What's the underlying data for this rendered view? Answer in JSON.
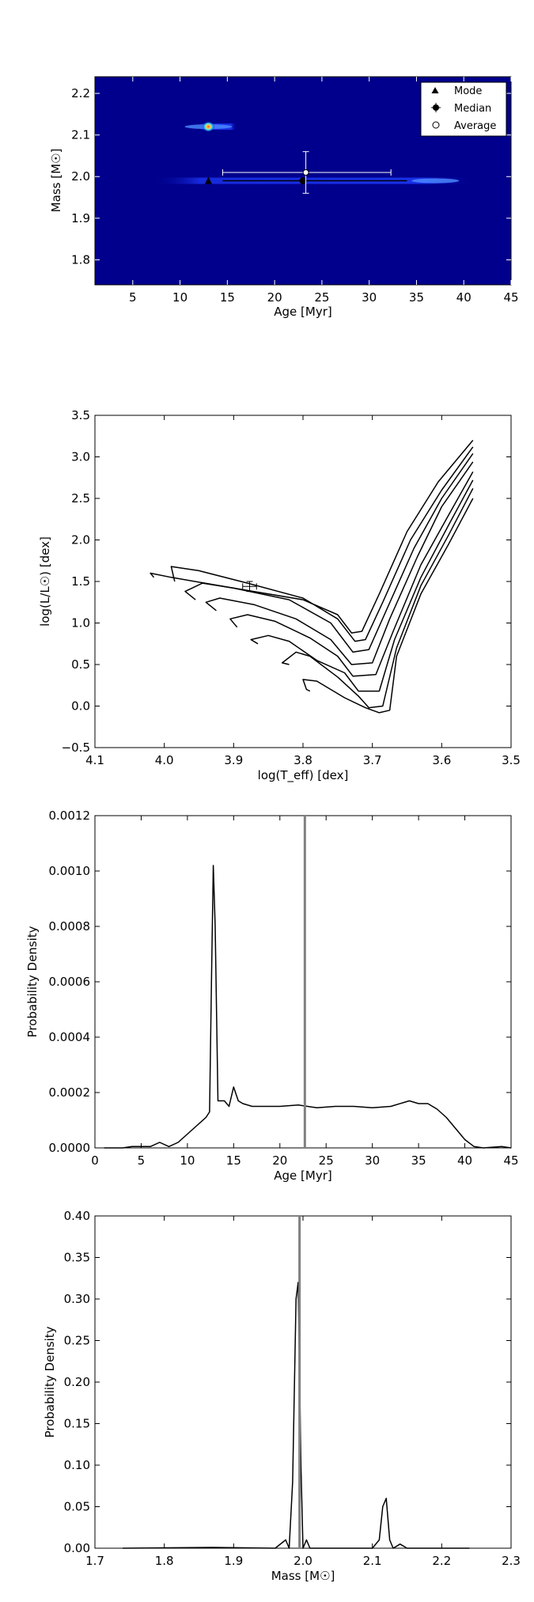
{
  "colors": {
    "heat_background": "#00008c",
    "heat_band": "#1f3cff",
    "heat_core": "#4d8dff",
    "line": "#000000",
    "marker_line": "#808080"
  },
  "chart_data": [
    {
      "type": "heatmap",
      "xlabel": "Age [Myr]",
      "ylabel": "Mass [M☉]",
      "xlim": [
        1,
        45
      ],
      "ylim": [
        1.74,
        2.24
      ],
      "xticks": [
        "5",
        "10",
        "15",
        "20",
        "25",
        "30",
        "35",
        "40",
        "45"
      ],
      "yticks": [
        "1.8",
        "1.9",
        "2.0",
        "2.1",
        "2.2"
      ],
      "legend_position": "top-right",
      "legend": [
        "Mode",
        "Median",
        "Average"
      ],
      "bands": [
        {
          "x_start": 7,
          "x_end": 41,
          "y": 1.99,
          "peak_x": 37
        },
        {
          "x_start": 12,
          "x_end": 16,
          "y": 2.12,
          "peak_x": 13
        }
      ],
      "hotspot": {
        "x": 13,
        "y": 2.12
      },
      "mode": {
        "x": 13,
        "y": 1.99
      },
      "median": {
        "x": 23,
        "y": 1.99,
        "xerr": [
          14.5,
          34
        ],
        "yerr": [
          1.99,
          1.99
        ]
      },
      "average": {
        "x": 23.3,
        "y": 2.01,
        "xerr": [
          14.5,
          32.3
        ],
        "yerr": [
          1.96,
          2.06
        ]
      }
    },
    {
      "type": "line",
      "xlabel": "log(T_eff) [dex]",
      "ylabel": "log(L/L☉) [dex]",
      "xlim": [
        4.1,
        3.5
      ],
      "ylim": [
        -0.5,
        3.5
      ],
      "xticks": [
        "4.1",
        "4.0",
        "3.9",
        "3.8",
        "3.7",
        "3.6",
        "3.5"
      ],
      "yticks": [
        "−0.5",
        "0.0",
        "0.5",
        "1.0",
        "1.5",
        "2.0",
        "2.5",
        "3.0",
        "3.5"
      ],
      "series": [
        {
          "values": [
            [
              4.015,
              1.55
            ],
            [
              4.02,
              1.6
            ],
            [
              3.99,
              1.55
            ],
            [
              3.9,
              1.42
            ],
            [
              3.8,
              1.28
            ],
            [
              3.75,
              1.1
            ],
            [
              3.73,
              0.88
            ],
            [
              3.715,
              0.9
            ],
            [
              3.69,
              1.35
            ],
            [
              3.65,
              2.1
            ],
            [
              3.605,
              2.7
            ],
            [
              3.555,
              3.2
            ]
          ]
        },
        {
          "values": [
            [
              3.985,
              1.5
            ],
            [
              3.99,
              1.68
            ],
            [
              3.95,
              1.63
            ],
            [
              3.88,
              1.48
            ],
            [
              3.8,
              1.3
            ],
            [
              3.75,
              1.05
            ],
            [
              3.725,
              0.78
            ],
            [
              3.71,
              0.8
            ],
            [
              3.685,
              1.25
            ],
            [
              3.645,
              2.0
            ],
            [
              3.6,
              2.6
            ],
            [
              3.555,
              3.12
            ]
          ]
        },
        {
          "values": [
            [
              3.955,
              1.28
            ],
            [
              3.97,
              1.38
            ],
            [
              3.945,
              1.48
            ],
            [
              3.9,
              1.42
            ],
            [
              3.82,
              1.28
            ],
            [
              3.76,
              1.0
            ],
            [
              3.728,
              0.65
            ],
            [
              3.705,
              0.68
            ],
            [
              3.68,
              1.15
            ],
            [
              3.64,
              1.9
            ],
            [
              3.6,
              2.5
            ],
            [
              3.555,
              3.04
            ]
          ]
        },
        {
          "values": [
            [
              3.925,
              1.15
            ],
            [
              3.94,
              1.25
            ],
            [
              3.92,
              1.3
            ],
            [
              3.87,
              1.22
            ],
            [
              3.81,
              1.05
            ],
            [
              3.76,
              0.8
            ],
            [
              3.73,
              0.5
            ],
            [
              3.7,
              0.52
            ],
            [
              3.675,
              1.05
            ],
            [
              3.635,
              1.8
            ],
            [
              3.6,
              2.4
            ],
            [
              3.555,
              2.94
            ]
          ]
        },
        {
          "values": [
            [
              3.895,
              0.95
            ],
            [
              3.905,
              1.05
            ],
            [
              3.88,
              1.1
            ],
            [
              3.84,
              1.02
            ],
            [
              3.79,
              0.82
            ],
            [
              3.75,
              0.6
            ],
            [
              3.728,
              0.36
            ],
            [
              3.695,
              0.38
            ],
            [
              3.67,
              0.9
            ],
            [
              3.63,
              1.7
            ],
            [
              3.59,
              2.3
            ],
            [
              3.555,
              2.82
            ]
          ]
        },
        {
          "values": [
            [
              3.865,
              0.75
            ],
            [
              3.875,
              0.8
            ],
            [
              3.85,
              0.85
            ],
            [
              3.82,
              0.78
            ],
            [
              3.78,
              0.55
            ],
            [
              3.74,
              0.4
            ],
            [
              3.72,
              0.18
            ],
            [
              3.69,
              0.18
            ],
            [
              3.668,
              0.8
            ],
            [
              3.63,
              1.55
            ],
            [
              3.59,
              2.18
            ],
            [
              3.555,
              2.72
            ]
          ]
        },
        {
          "values": [
            [
              3.82,
              0.5
            ],
            [
              3.83,
              0.52
            ],
            [
              3.81,
              0.65
            ],
            [
              3.79,
              0.6
            ],
            [
              3.75,
              0.35
            ],
            [
              3.72,
              0.12
            ],
            [
              3.705,
              -0.02
            ],
            [
              3.685,
              0.0
            ],
            [
              3.665,
              0.7
            ],
            [
              3.63,
              1.45
            ],
            [
              3.59,
              2.06
            ],
            [
              3.555,
              2.62
            ]
          ]
        },
        {
          "values": [
            [
              3.79,
              0.18
            ],
            [
              3.795,
              0.2
            ],
            [
              3.8,
              0.32
            ],
            [
              3.78,
              0.3
            ],
            [
              3.74,
              0.1
            ],
            [
              3.71,
              -0.02
            ],
            [
              3.69,
              -0.08
            ],
            [
              3.675,
              -0.05
            ],
            [
              3.665,
              0.6
            ],
            [
              3.63,
              1.35
            ],
            [
              3.59,
              1.95
            ],
            [
              3.555,
              2.5
            ]
          ]
        }
      ],
      "errorbar": {
        "x": 3.877,
        "y": 1.44,
        "xerr": 0.01,
        "yerr": 0.06
      }
    },
    {
      "type": "line",
      "xlabel": "Age [Myr]",
      "ylabel": "Probability Density",
      "xlim": [
        0,
        45
      ],
      "ylim": [
        0,
        0.0012
      ],
      "xticks": [
        "0",
        "5",
        "10",
        "15",
        "20",
        "25",
        "30",
        "35",
        "40",
        "45"
      ],
      "yticks": [
        "0.0000",
        "0.0002",
        "0.0004",
        "0.0006",
        "0.0008",
        "0.0010",
        "0.0012"
      ],
      "vline": 22.7,
      "series": [
        {
          "values": [
            [
              1,
              0.0
            ],
            [
              3,
              0.0
            ],
            [
              4,
              5e-06
            ],
            [
              5,
              5e-06
            ],
            [
              6,
              5e-06
            ],
            [
              7,
              2e-05
            ],
            [
              8,
              5e-06
            ],
            [
              9,
              2e-05
            ],
            [
              10,
              5e-05
            ],
            [
              11,
              8e-05
            ],
            [
              12,
              0.00011
            ],
            [
              12.4,
              0.00013
            ],
            [
              12.6,
              0.0006
            ],
            [
              12.8,
              0.00102
            ],
            [
              13.0,
              0.0008
            ],
            [
              13.3,
              0.00017
            ],
            [
              14,
              0.00017
            ],
            [
              14.5,
              0.00015
            ],
            [
              15,
              0.00022
            ],
            [
              15.5,
              0.00017
            ],
            [
              16,
              0.00016
            ],
            [
              17,
              0.00015
            ],
            [
              18,
              0.00015
            ],
            [
              20,
              0.00015
            ],
            [
              22,
              0.000155
            ],
            [
              24,
              0.000145
            ],
            [
              26,
              0.00015
            ],
            [
              28,
              0.00015
            ],
            [
              30,
              0.000145
            ],
            [
              32,
              0.00015
            ],
            [
              34,
              0.00017
            ],
            [
              35,
              0.00016
            ],
            [
              36,
              0.00016
            ],
            [
              37,
              0.00014
            ],
            [
              38,
              0.00011
            ],
            [
              39,
              7e-05
            ],
            [
              40,
              3e-05
            ],
            [
              41,
              5e-06
            ],
            [
              42,
              0.0
            ],
            [
              44,
              5e-06
            ],
            [
              45,
              0.0
            ]
          ]
        }
      ]
    },
    {
      "type": "line",
      "xlabel": "Mass [M☉]",
      "ylabel": "Probability Density",
      "xlim": [
        1.7,
        2.3
      ],
      "ylim": [
        0,
        0.4
      ],
      "xticks": [
        "1.7",
        "1.8",
        "1.9",
        "2.0",
        "2.1",
        "2.2",
        "2.3"
      ],
      "yticks": [
        "0.00",
        "0.05",
        "0.10",
        "0.15",
        "0.20",
        "0.25",
        "0.30",
        "0.35",
        "0.40"
      ],
      "vline": 1.995,
      "series": [
        {
          "values": [
            [
              1.74,
              0.0
            ],
            [
              1.87,
              0.001
            ],
            [
              1.96,
              0.0
            ],
            [
              1.975,
              0.01
            ],
            [
              1.98,
              0.0
            ],
            [
              1.985,
              0.08
            ],
            [
              1.99,
              0.3
            ],
            [
              1.993,
              0.32
            ],
            [
              1.997,
              0.1
            ],
            [
              2.0,
              0.0
            ],
            [
              2.005,
              0.01
            ],
            [
              2.01,
              0.0
            ],
            [
              2.1,
              0.0
            ],
            [
              2.11,
              0.01
            ],
            [
              2.115,
              0.05
            ],
            [
              2.12,
              0.06
            ],
            [
              2.125,
              0.01
            ],
            [
              2.13,
              0.0
            ],
            [
              2.14,
              0.005
            ],
            [
              2.15,
              0.0
            ],
            [
              2.24,
              0.0
            ]
          ]
        }
      ]
    }
  ]
}
